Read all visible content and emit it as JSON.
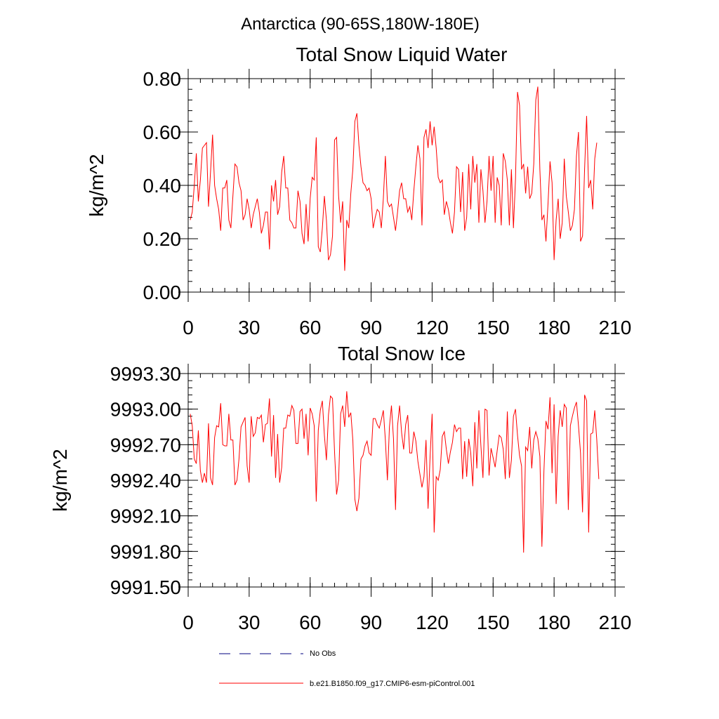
{
  "page_title": "Antarctica (90-65S,180W-180E)",
  "legend": {
    "items": [
      {
        "label": "No Obs",
        "style": "dashed",
        "color": "#000080"
      },
      {
        "label": "b.e21.B1850.f09_g17.CMIP6-esm-piControl.001",
        "style": "solid",
        "color": "#ff0000"
      }
    ]
  },
  "chart_data": [
    {
      "type": "line",
      "title": "Total Snow Liquid Water",
      "xlabel": "",
      "ylabel": "kg/m^2",
      "xlim": [
        0,
        210
      ],
      "ylim": [
        0.0,
        0.8
      ],
      "xticks": [
        0,
        30,
        60,
        90,
        120,
        150,
        180,
        210
      ],
      "yticks": [
        0.0,
        0.2,
        0.4,
        0.6,
        0.8
      ],
      "xtick_labels": [
        "0",
        "30",
        "60",
        "90",
        "120",
        "150",
        "180",
        "210"
      ],
      "ytick_labels": [
        "0.00",
        "0.20",
        "0.40",
        "0.60",
        "0.80"
      ],
      "grid": false,
      "series": [
        {
          "name": "b.e21.B1850.f09_g17.CMIP6-esm-piControl.001",
          "color": "#ff0000",
          "values": [
            0.27,
            0.3,
            0.4,
            0.52,
            0.34,
            0.42,
            0.54,
            0.55,
            0.56,
            0.32,
            0.45,
            0.59,
            0.4,
            0.35,
            0.31,
            0.23,
            0.39,
            0.39,
            0.42,
            0.27,
            0.24,
            0.36,
            0.48,
            0.47,
            0.41,
            0.38,
            0.27,
            0.29,
            0.35,
            0.31,
            0.24,
            0.29,
            0.32,
            0.35,
            0.3,
            0.22,
            0.25,
            0.3,
            0.3,
            0.16,
            0.4,
            0.34,
            0.42,
            0.29,
            0.32,
            0.45,
            0.51,
            0.39,
            0.39,
            0.27,
            0.26,
            0.24,
            0.24,
            0.38,
            0.34,
            0.22,
            0.18,
            0.33,
            0.19,
            0.35,
            0.43,
            0.42,
            0.58,
            0.17,
            0.15,
            0.24,
            0.36,
            0.27,
            0.12,
            0.14,
            0.21,
            0.57,
            0.58,
            0.36,
            0.26,
            0.34,
            0.08,
            0.27,
            0.24,
            0.37,
            0.46,
            0.64,
            0.67,
            0.55,
            0.47,
            0.41,
            0.4,
            0.38,
            0.39,
            0.35,
            0.24,
            0.28,
            0.31,
            0.3,
            0.24,
            0.35,
            0.51,
            0.34,
            0.32,
            0.33,
            0.28,
            0.23,
            0.3,
            0.38,
            0.41,
            0.35,
            0.35,
            0.3,
            0.32,
            0.27,
            0.38,
            0.47,
            0.55,
            0.5,
            0.25,
            0.58,
            0.61,
            0.54,
            0.64,
            0.55,
            0.62,
            0.54,
            0.43,
            0.41,
            0.42,
            0.29,
            0.34,
            0.31,
            0.26,
            0.22,
            0.3,
            0.47,
            0.46,
            0.3,
            0.45,
            0.23,
            0.28,
            0.48,
            0.31,
            0.51,
            0.41,
            0.48,
            0.26,
            0.46,
            0.38,
            0.26,
            0.34,
            0.51,
            0.38,
            0.51,
            0.26,
            0.43,
            0.4,
            0.25,
            0.52,
            0.49,
            0.42,
            0.25,
            0.46,
            0.24,
            0.42,
            0.75,
            0.7,
            0.46,
            0.48,
            0.37,
            0.47,
            0.35,
            0.37,
            0.48,
            0.72,
            0.77,
            0.46,
            0.27,
            0.29,
            0.19,
            0.33,
            0.49,
            0.41,
            0.12,
            0.27,
            0.35,
            0.2,
            0.26,
            0.5,
            0.36,
            0.3,
            0.23,
            0.25,
            0.31,
            0.51,
            0.6,
            0.19,
            0.21,
            0.46,
            0.66,
            0.39,
            0.42,
            0.31,
            0.5,
            0.56
          ]
        }
      ]
    },
    {
      "type": "line",
      "title": "Total Snow Ice",
      "xlabel": "",
      "ylabel": "kg/m^2",
      "xlim": [
        0,
        210
      ],
      "ylim": [
        9991.5,
        9993.3
      ],
      "xticks": [
        0,
        30,
        60,
        90,
        120,
        150,
        180,
        210
      ],
      "yticks": [
        9991.5,
        9991.8,
        9992.1,
        9992.4,
        9992.7,
        9993.0,
        9993.3
      ],
      "xtick_labels": [
        "0",
        "30",
        "60",
        "90",
        "120",
        "150",
        "180",
        "210"
      ],
      "ytick_labels": [
        "9991.50",
        "9991.80",
        "9992.10",
        "9992.40",
        "9992.70",
        "9993.00",
        "9993.30"
      ],
      "grid": false,
      "series": [
        {
          "name": "b.e21.B1850.f09_g17.CMIP6-esm-piControl.001",
          "color": "#ff0000",
          "values": [
            9992.96,
            9992.86,
            9992.58,
            9992.54,
            9992.82,
            9992.48,
            9992.38,
            9992.46,
            9992.38,
            9992.88,
            9992.42,
            9992.36,
            9992.76,
            9992.86,
            9992.85,
            9993.05,
            9992.7,
            9992.69,
            9992.69,
            9992.96,
            9992.74,
            9992.74,
            9992.36,
            9992.4,
            9992.58,
            9992.85,
            9992.89,
            9992.93,
            9992.52,
            9992.38,
            9992.94,
            9992.77,
            9992.8,
            9992.93,
            9992.92,
            9992.95,
            9992.72,
            9992.87,
            9992.88,
            9993.09,
            9992.6,
            9992.95,
            9992.42,
            9992.79,
            9992.38,
            9992.51,
            9992.84,
            9992.84,
            9992.95,
            9992.94,
            9993.03,
            9992.99,
            9992.71,
            9992.71,
            9992.98,
            9993.0,
            9992.75,
            9992.96,
            9992.61,
            9993.01,
            9992.96,
            9992.86,
            9992.22,
            9992.82,
            9992.99,
            9993.07,
            9992.78,
            9992.57,
            9992.95,
            9993.11,
            9993.09,
            9992.64,
            9992.28,
            9992.4,
            9992.96,
            9993.03,
            9992.85,
            9993.15,
            9992.93,
            9992.97,
            9992.74,
            9992.24,
            9992.14,
            9992.25,
            9992.58,
            9992.61,
            9992.69,
            9992.73,
            9992.63,
            9992.61,
            9992.92,
            9992.92,
            9992.87,
            9992.84,
            9992.91,
            9992.99,
            9992.74,
            9992.4,
            9992.85,
            9993.03,
            9992.75,
            9992.15,
            9992.86,
            9993.03,
            9992.8,
            9992.66,
            9992.87,
            9992.95,
            9992.63,
            9992.63,
            9992.81,
            9992.73,
            9992.56,
            9992.45,
            9992.34,
            9992.43,
            9992.74,
            9992.16,
            9992.6,
            9992.96,
            9991.96,
            9992.43,
            9992.4,
            9992.49,
            9992.77,
            9992.81,
            9992.66,
            9992.54,
            9992.64,
            9992.72,
            9992.87,
            9992.81,
            9992.84,
            9992.84,
            9992.41,
            9992.73,
            9992.43,
            9992.75,
            9992.63,
            9992.35,
            9992.89,
            9992.5,
            9992.99,
            9992.69,
            9992.42,
            9993.0,
            9992.99,
            9992.44,
            9992.67,
            9992.59,
            9992.51,
            9992.65,
            9992.78,
            9992.76,
            9992.66,
            9992.41,
            9992.98,
            9992.42,
            9992.57,
            9992.94,
            9993.0,
            9992.78,
            9992.61,
            9992.52,
            9991.79,
            9992.68,
            9992.65,
            9992.85,
            9992.5,
            9992.74,
            9992.81,
            9992.75,
            9992.6,
            9991.84,
            9992.48,
            9992.9,
            9992.83,
            9993.1,
            9992.46,
            9993.04,
            9992.2,
            9992.77,
            9992.99,
            9992.85,
            9993.04,
            9993.01,
            9992.15,
            9992.86,
            9992.94,
            9993.01,
            9993.06,
            9992.86,
            9992.63,
            9992.13,
            9993.12,
            9993.07,
            9991.96,
            9992.79,
            9992.8,
            9992.99,
            9992.74,
            9992.41
          ]
        }
      ]
    }
  ]
}
